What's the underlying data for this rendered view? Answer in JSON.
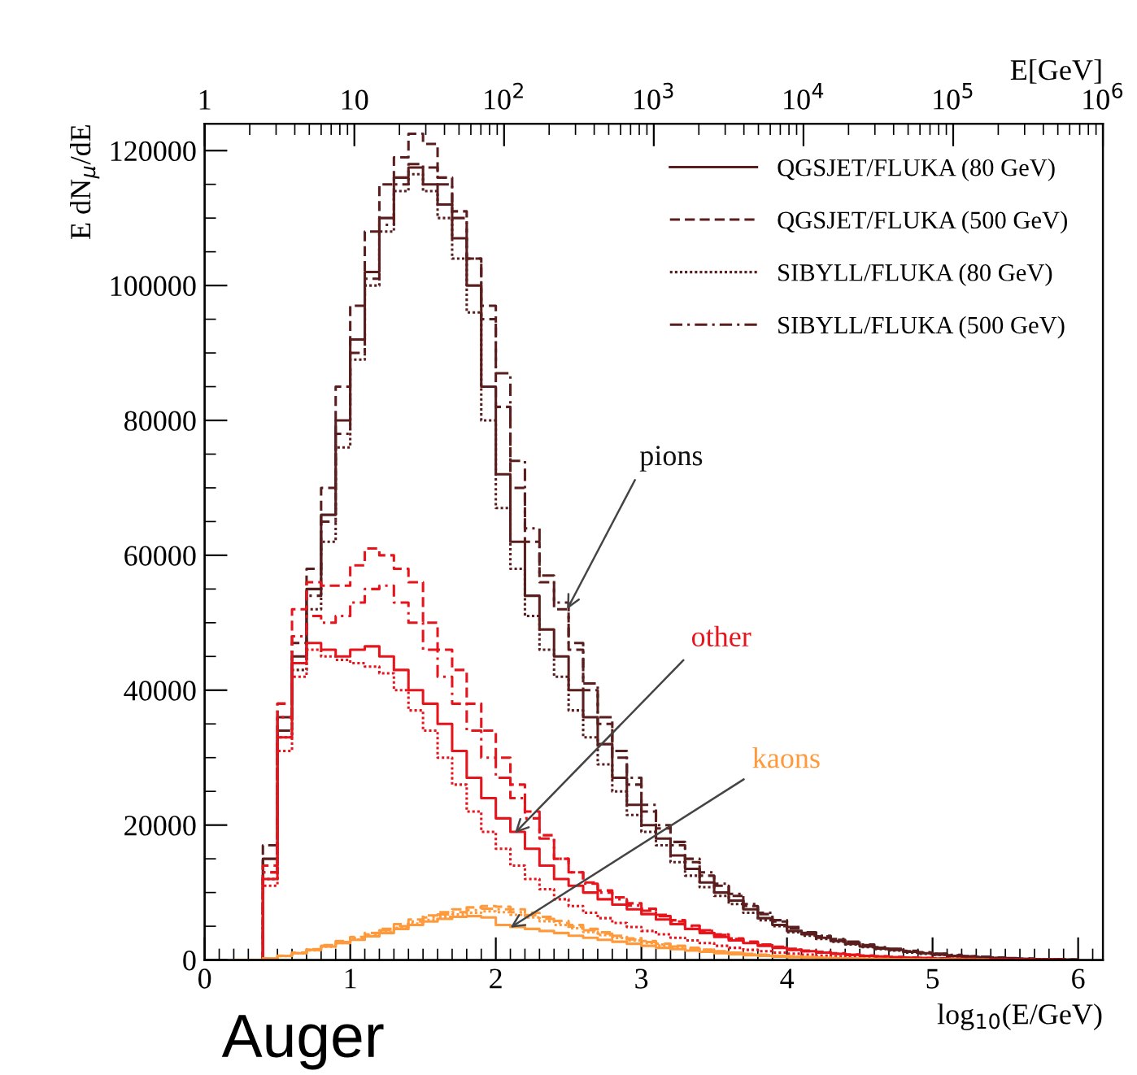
{
  "chart_data": {
    "type": "step",
    "xlabel": "log$_{10}$(E/GeV)",
    "ylabel": "E dN$_{μ}$/dE",
    "x2label": "E[GeV]",
    "xlim": [
      0,
      6.17
    ],
    "xticks": [
      0,
      1,
      2,
      3,
      4,
      5,
      6
    ],
    "ylim": [
      0,
      124000
    ],
    "yticks": [
      0,
      20000,
      40000,
      60000,
      80000,
      100000,
      120000
    ],
    "x2lim": [
      1,
      1000000
    ],
    "log": "x2",
    "x2ticks": [
      1,
      10,
      {
        "value": 100,
        "label": "10$^{2}$"
      },
      {
        "value": 1000,
        "label": "10$^{3}$"
      },
      {
        "value": 10000,
        "label": "10$^{4}$"
      },
      {
        "value": 100000,
        "label": "10$^{5}$"
      },
      {
        "value": 1000000,
        "label": "10$^{6}$"
      }
    ],
    "grid": false,
    "legend": "top right",
    "x": [
      0.2,
      0.3,
      0.4,
      0.5,
      0.6,
      0.7,
      0.8,
      0.9,
      1.0,
      1.1,
      1.2,
      1.3,
      1.4,
      1.5,
      1.6,
      1.7,
      1.8,
      1.9,
      2.0,
      2.1,
      2.2,
      2.3,
      2.4,
      2.5,
      2.6,
      2.7,
      2.8,
      2.9,
      3.0,
      3.1,
      3.2,
      3.3,
      3.4,
      3.5,
      3.6,
      3.7,
      3.8,
      3.9,
      4.0,
      4.1,
      4.2,
      4.3,
      4.4,
      4.5,
      4.6,
      4.7,
      4.8,
      4.9,
      5.0,
      5.1,
      5.2,
      5.3,
      5.4,
      5.5,
      5.6,
      5.7,
      5.8,
      5.9,
      6.0
    ],
    "series": [
      {
        "name": "QGSJET/FLUKA (80 GeV)",
        "color": "#5a1e1e",
        "line_style": "solid",
        "values": [
          0,
          0,
          15000,
          36000,
          45000,
          55000,
          66000,
          80000,
          92000,
          102000,
          110000,
          116000,
          117500,
          115000,
          112000,
          107000,
          100000,
          85000,
          72000,
          62000,
          54000,
          49000,
          45000,
          40000,
          36000,
          32000,
          27000,
          23000,
          20000,
          18000,
          15500,
          13500,
          11500,
          10000,
          8800,
          7500,
          6200,
          5200,
          4300,
          3800,
          3300,
          2800,
          2400,
          2000,
          1700,
          1500,
          1200,
          1000,
          800,
          600,
          500,
          400,
          300,
          200,
          150,
          100,
          80,
          50,
          30
        ]
      },
      {
        "name": "QGSJET/FLUKA (500 GeV)",
        "color": "#5a1e1e",
        "line_style": "dashed",
        "values": [
          0,
          0,
          17000,
          38000,
          47000,
          58000,
          70000,
          85000,
          97000,
          108000,
          115000,
          119000,
          122500,
          121000,
          116000,
          111000,
          104000,
          95000,
          82000,
          70000,
          62000,
          56000,
          52000,
          46000,
          40000,
          35000,
          30000,
          26000,
          22000,
          19500,
          17000,
          14500,
          12500,
          11000,
          9500,
          8000,
          6800,
          5700,
          4700,
          4000,
          3500,
          3000,
          2600,
          2200,
          1800,
          1600,
          1300,
          1100,
          900,
          700,
          550,
          450,
          350,
          250,
          180,
          120,
          90,
          60,
          40
        ]
      },
      {
        "name": "SIBYLL/FLUKA (80 GeV)",
        "color": "#5a1e1e",
        "line_style": "dotted",
        "values": [
          0,
          0,
          12000,
          33000,
          43000,
          52000,
          62000,
          76000,
          89000,
          100000,
          108000,
          114000,
          116500,
          114000,
          110000,
          104000,
          96000,
          80000,
          67000,
          58000,
          51000,
          46000,
          42000,
          37000,
          33000,
          29000,
          25000,
          21500,
          19000,
          17000,
          14500,
          12500,
          10800,
          9500,
          8300,
          7000,
          5900,
          5000,
          4100,
          3600,
          3100,
          2700,
          2300,
          1900,
          1600,
          1400,
          1100,
          900,
          750,
          550,
          450,
          350,
          280,
          190,
          140,
          90,
          70,
          45,
          25
        ]
      },
      {
        "name": "SIBYLL/FLUKA (500 GeV)",
        "color": "#5a1e1e",
        "line_style": "dashdot",
        "values": [
          0,
          0,
          13000,
          34000,
          44000,
          54000,
          65000,
          78000,
          90000,
          101000,
          109000,
          115000,
          118000,
          117500,
          115000,
          110000,
          104000,
          97000,
          87000,
          74000,
          64000,
          57000,
          53000,
          47000,
          41000,
          36000,
          31000,
          27000,
          23000,
          20000,
          17500,
          15000,
          13000,
          11300,
          9800,
          8300,
          7000,
          5900,
          4900,
          4100,
          3600,
          3100,
          2700,
          2300,
          1900,
          1650,
          1350,
          1150,
          950,
          750,
          580,
          470,
          370,
          270,
          190,
          130,
          95,
          65,
          45
        ]
      },
      {
        "color": "#e8141c",
        "line_style": "solid",
        "values": [
          0,
          0,
          12000,
          33000,
          44000,
          47000,
          46000,
          45000,
          46000,
          46500,
          45000,
          43000,
          40000,
          38000,
          35000,
          31000,
          27000,
          24000,
          21000,
          19000,
          16500,
          14000,
          12000,
          11000,
          10000,
          9000,
          8200,
          7500,
          6800,
          6000,
          5300,
          4600,
          4000,
          3400,
          2900,
          2500,
          2100,
          1800,
          1500,
          1300,
          1100,
          900,
          750,
          600,
          500,
          400,
          330,
          270,
          220,
          180,
          140,
          110,
          90,
          70,
          50,
          40,
          30,
          20,
          null
        ]
      },
      {
        "color": "#e8141c",
        "line_style": "dashed",
        "values": [
          0,
          0,
          14000,
          38000,
          52000,
          56000,
          55500,
          55500,
          58500,
          61000,
          60000,
          58000,
          56000,
          50000,
          46000,
          43000,
          38000,
          34000,
          30000,
          26000,
          22000,
          18500,
          15000,
          13000,
          11500,
          10300,
          9300,
          8400,
          7600,
          6700,
          5900,
          5100,
          4400,
          3800,
          3200,
          2700,
          2300,
          1950,
          1650,
          1400,
          1200,
          1000,
          820,
          670,
          550,
          440,
          360,
          290,
          240,
          190,
          150,
          120,
          95,
          75,
          55,
          42,
          32,
          22,
          null
        ]
      },
      {
        "color": "#e8141c",
        "line_style": "dotted",
        "values": [
          0,
          0,
          11000,
          31000,
          42000,
          46000,
          45000,
          44500,
          44000,
          43500,
          42500,
          40000,
          37000,
          34000,
          30000,
          26000,
          22000,
          19000,
          16500,
          14000,
          12000,
          10500,
          9000,
          8000,
          7000,
          6200,
          5500,
          4900,
          4300,
          3800,
          3300,
          2900,
          2500,
          2100,
          1800,
          1500,
          1300,
          1100,
          950,
          800,
          650,
          540,
          440,
          360,
          290,
          230,
          190,
          150,
          120,
          95,
          75,
          60,
          45,
          35,
          27,
          20,
          null,
          null,
          null
        ]
      },
      {
        "color": "#e8141c",
        "line_style": "dashdot",
        "values": [
          0,
          0,
          13000,
          36000,
          48000,
          51000,
          50000,
          51000,
          53000,
          55000,
          55500,
          53000,
          50000,
          46000,
          42000,
          38000,
          34000,
          30000,
          27000,
          24000,
          21000,
          18000,
          15000,
          13000,
          11300,
          10000,
          9000,
          8100,
          7300,
          6500,
          5700,
          5000,
          4300,
          3700,
          3100,
          2600,
          2200,
          1850,
          1550,
          1300,
          1100,
          920,
          760,
          620,
          500,
          400,
          330,
          270,
          220,
          175,
          140,
          110,
          88,
          68,
          50,
          38,
          28,
          19,
          null
        ]
      },
      {
        "color": "#ff9a3c",
        "line_style": "solid",
        "values": [
          0,
          0,
          200,
          600,
          1000,
          1500,
          2000,
          2500,
          3000,
          3500,
          4000,
          4600,
          5200,
          5700,
          6100,
          6400,
          6500,
          6300,
          5200,
          4900,
          4600,
          4300,
          4000,
          3600,
          3300,
          3000,
          2700,
          2400,
          2100,
          1800,
          1600,
          1400,
          1200,
          1000,
          850,
          700,
          600,
          500,
          400,
          330,
          270,
          220,
          180,
          150,
          120,
          100,
          80,
          60,
          50,
          40,
          30,
          20,
          null,
          null,
          null,
          null,
          null,
          null,
          null
        ]
      },
      {
        "color": "#ff9a3c",
        "line_style": "dashed",
        "values": [
          0,
          0,
          200,
          650,
          1100,
          1600,
          2200,
          2800,
          3400,
          4000,
          4600,
          5300,
          6000,
          6600,
          7100,
          7500,
          7800,
          8000,
          7900,
          7500,
          7000,
          6400,
          5800,
          5200,
          4600,
          4100,
          3600,
          3200,
          2800,
          2400,
          2100,
          1800,
          1550,
          1300,
          1100,
          920,
          780,
          650,
          530,
          430,
          350,
          280,
          230,
          185,
          150,
          120,
          95,
          75,
          60,
          48,
          38,
          28,
          20,
          null,
          null,
          null,
          null,
          null,
          null
        ]
      },
      {
        "color": "#ff9a3c",
        "line_style": "dotted",
        "values": [
          0,
          0,
          180,
          580,
          990,
          1440,
          1980,
          2500,
          3050,
          3600,
          4150,
          4750,
          5400,
          5950,
          6400,
          6750,
          7000,
          7200,
          7100,
          6700,
          6300,
          5750,
          5200,
          4700,
          4150,
          3700,
          3250,
          2900,
          2500,
          2150,
          1900,
          1600,
          1400,
          1170,
          990,
          830,
          700,
          580,
          480,
          390,
          310,
          250,
          205,
          165,
          135,
          108,
          85,
          68,
          54,
          43,
          34,
          25,
          18,
          null,
          null,
          null,
          null,
          null,
          null
        ]
      },
      {
        "color": "#ff9a3c",
        "line_style": "dashdot",
        "values": [
          0,
          0,
          190,
          620,
          1050,
          1520,
          2100,
          2650,
          3250,
          3800,
          4400,
          5000,
          5700,
          6300,
          6750,
          7100,
          7400,
          7600,
          7500,
          7100,
          6650,
          6100,
          5500,
          4950,
          4400,
          3900,
          3450,
          3050,
          2650,
          2300,
          2000,
          1700,
          1470,
          1240,
          1050,
          880,
          740,
          620,
          500,
          410,
          330,
          265,
          220,
          175,
          140,
          115,
          90,
          72,
          57,
          45,
          36,
          27,
          19,
          null,
          null,
          null,
          null,
          null,
          null
        ]
      }
    ],
    "annotations": [
      {
        "text": "pions",
        "x": 2.49,
        "y": 52000
      },
      {
        "text": "other",
        "x": 2.13,
        "y": 18800
      },
      {
        "text": "kaons",
        "x": 2.1,
        "y": 4800
      },
      "Auger"
    ]
  }
}
